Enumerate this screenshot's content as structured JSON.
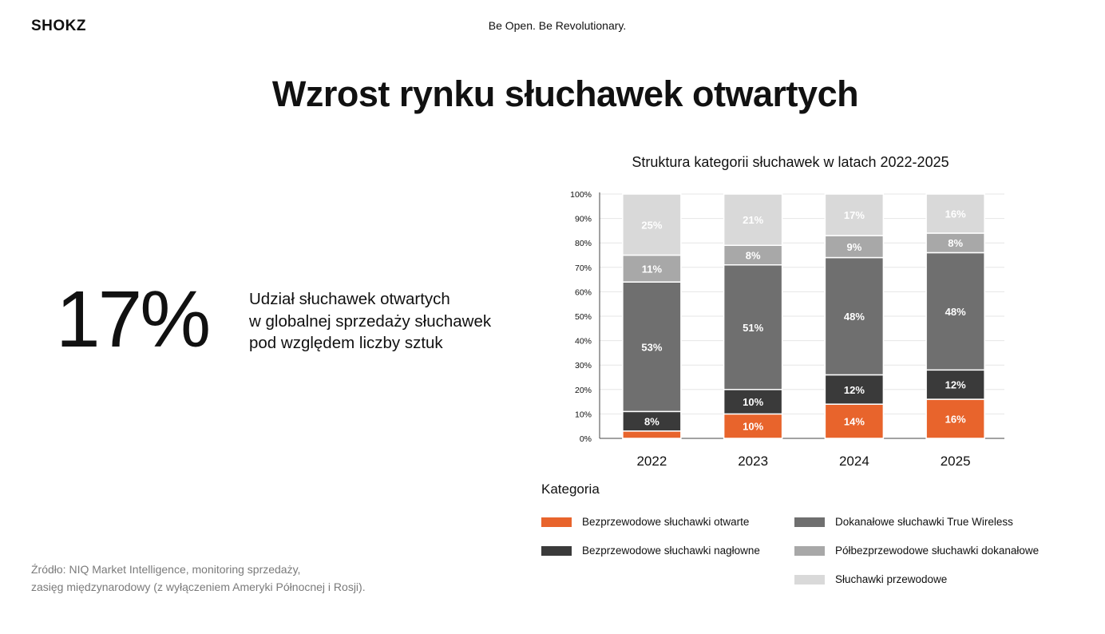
{
  "header": {
    "logo": "SHOKZ",
    "tagline": "Be Open. Be Revolutionary."
  },
  "page_title": "Wzrost rynku słuchawek otwartych",
  "stat": {
    "value": "17%",
    "description_lines": [
      "Udział słuchawek otwartych",
      "w globalnej sprzedaży słuchawek",
      "pod względem liczby sztuk"
    ]
  },
  "source_lines": [
    "Źródło: NIQ Market Intelligence, monitoring sprzedaży,",
    "zasięg międzynarodowy (z wyłączeniem Ameryki Północnej i Rosji)."
  ],
  "chart_data": {
    "type": "bar",
    "stacked": true,
    "title": "Struktura kategorii słuchawek w latach 2022-2025",
    "categories": [
      "2022",
      "2023",
      "2024",
      "2025"
    ],
    "ylim": [
      0,
      100
    ],
    "yticks": [
      "0%",
      "10%",
      "20%",
      "30%",
      "40%",
      "50%",
      "60%",
      "70%",
      "80%",
      "90%",
      "100%"
    ],
    "grid": true,
    "legend_title": "Kategoria",
    "legend_position": "bottom",
    "series": [
      {
        "name": "Bezprzewodowe słuchawki otwarte",
        "color": "#e8642c",
        "values": [
          3,
          10,
          14,
          16
        ],
        "labels": [
          "",
          "10%",
          "14%",
          "16%"
        ]
      },
      {
        "name": "Bezprzewodowe słuchawki nagłowne",
        "color": "#3a3a3a",
        "values": [
          8,
          10,
          12,
          12
        ],
        "labels": [
          "8%",
          "10%",
          "12%",
          "12%"
        ]
      },
      {
        "name": "Dokanałowe słuchawki True Wireless",
        "color": "#6f6f6f",
        "values": [
          53,
          51,
          48,
          48
        ],
        "labels": [
          "53%",
          "51%",
          "48%",
          "48%"
        ]
      },
      {
        "name": "Półbezprzewodowe słuchawki dokanałowe",
        "color": "#a8a8a8",
        "values": [
          11,
          8,
          9,
          8
        ],
        "labels": [
          "11%",
          "8%",
          "9%",
          "8%"
        ]
      },
      {
        "name": "Słuchawki przewodowe",
        "color": "#d9d9d9",
        "values": [
          25,
          21,
          17,
          16
        ],
        "labels": [
          "25%",
          "21%",
          "17%",
          "16%"
        ]
      }
    ]
  }
}
